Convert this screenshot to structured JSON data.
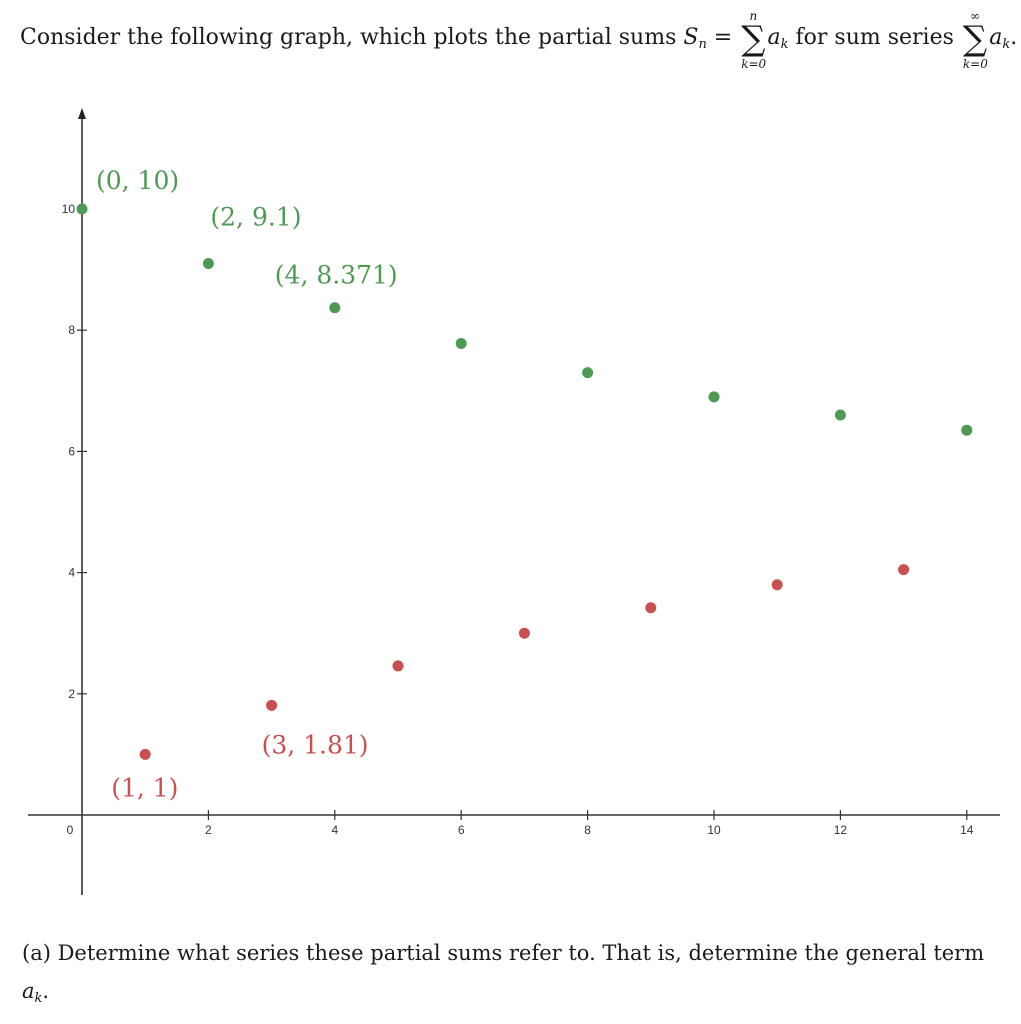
{
  "intro": {
    "text1": "Consider the following graph, which plots the partial sums ",
    "s_symbol": "S",
    "s_sub": "n",
    "equals": " = ",
    "sigma": "∑",
    "sum1_upper": "n",
    "sum1_lower": "k=0",
    "term": "a",
    "term_sub": "k",
    "text2": " for sum series ",
    "sum2_upper": "∞",
    "sum2_lower": "k=0",
    "period": "."
  },
  "question": {
    "label": "(a)",
    "text": " Determine what series these partial sums refer to. That is, determine the general term ",
    "term": "a",
    "term_sub": "k",
    "period": "."
  },
  "chart_data": {
    "type": "scatter",
    "xlim": [
      0,
      14
    ],
    "ylim": [
      -1,
      11.5
    ],
    "x_ticks": [
      0,
      2,
      4,
      6,
      8,
      10,
      12,
      14
    ],
    "y_ticks": [
      2,
      4,
      6,
      8,
      10
    ],
    "grid": false,
    "series": [
      {
        "color": "#4e9a53",
        "points": [
          {
            "x": 0,
            "y": 10,
            "label": "(0, 10)"
          },
          {
            "x": 2,
            "y": 9.1,
            "label": "(2, 9.1)"
          },
          {
            "x": 4,
            "y": 8.371,
            "label": "(4, 8.371)"
          },
          {
            "x": 6,
            "y": 7.78
          },
          {
            "x": 8,
            "y": 7.3
          },
          {
            "x": 10,
            "y": 6.9
          },
          {
            "x": 12,
            "y": 6.6
          },
          {
            "x": 14,
            "y": 6.35
          }
        ]
      },
      {
        "color": "#c9504f",
        "points": [
          {
            "x": 1,
            "y": 1,
            "label": "(1, 1)"
          },
          {
            "x": 3,
            "y": 1.81,
            "label": "(3, 1.81)"
          },
          {
            "x": 5,
            "y": 2.46
          },
          {
            "x": 7,
            "y": 3.0
          },
          {
            "x": 9,
            "y": 3.42
          },
          {
            "x": 11,
            "y": 3.8
          },
          {
            "x": 13,
            "y": 4.05
          }
        ]
      }
    ]
  }
}
